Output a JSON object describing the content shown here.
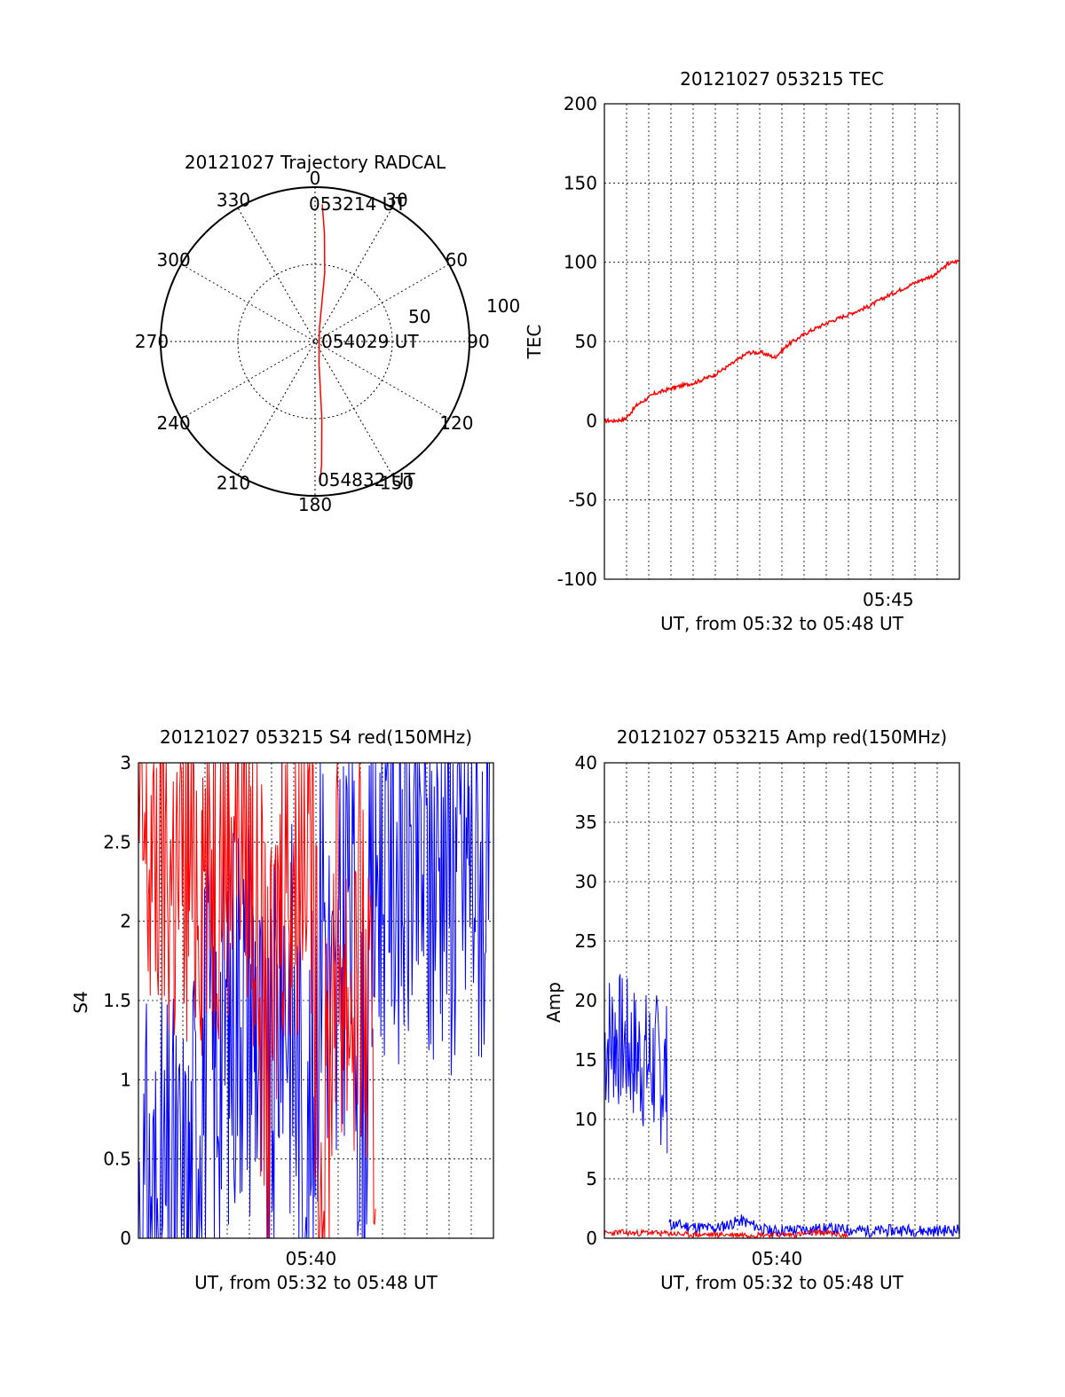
{
  "chart_data": [
    {
      "id": "trajectory",
      "type": "scatter",
      "title": "20121027 Trajectory RADCAL",
      "azimuth_labels": [
        "0",
        "30",
        "60",
        "90",
        "120",
        "150",
        "180",
        "210",
        "240",
        "270",
        "300",
        "330"
      ],
      "radial_labels": [
        "50",
        "100"
      ],
      "rmax": 100,
      "grid": true,
      "annotations": [
        "053214 UT",
        "054029 UT",
        "054832 UT"
      ],
      "series": [
        {
          "color": "#ff0000",
          "points": [
            {
              "az": 3,
              "r": 89
            },
            {
              "az": 5,
              "r": 70
            },
            {
              "az": 8,
              "r": 45
            },
            {
              "az": 20,
              "r": 8
            },
            {
              "az": 170,
              "r": 15
            },
            {
              "az": 175,
              "r": 50
            },
            {
              "az": 177,
              "r": 80
            },
            {
              "az": 178,
              "r": 93
            }
          ]
        }
      ]
    },
    {
      "id": "tec",
      "type": "line",
      "title": "20121027 053215 TEC",
      "xlabel": "UT, from 05:32 to 05:48 UT",
      "ylabel": "TEC",
      "xlim": [
        5.5375,
        5.8033
      ],
      "ylim": [
        -100,
        200
      ],
      "yticks": [
        -100,
        -50,
        0,
        50,
        100,
        150,
        200
      ],
      "xtick_labels": [
        {
          "x": 5.75,
          "label": "05:45"
        }
      ],
      "grid": true,
      "series": [
        {
          "color": "#ff0000",
          "x": [
            5.5375,
            5.545,
            5.553,
            5.562,
            5.575,
            5.59,
            5.605,
            5.62,
            5.635,
            5.645,
            5.655,
            5.665,
            5.675,
            5.69,
            5.705,
            5.72,
            5.735,
            5.75,
            5.765,
            5.775,
            5.785,
            5.795,
            5.8033
          ],
          "y": [
            0,
            0,
            1,
            10,
            17,
            21,
            24,
            29,
            37,
            43,
            43,
            40,
            48,
            56,
            62,
            67,
            72,
            79,
            85,
            89,
            92,
            99,
            101
          ]
        }
      ]
    },
    {
      "id": "s4",
      "type": "line",
      "title": "20121027 053215 S4 red(150MHz)",
      "xlabel": "UT, from 05:32 to 05:48 UT",
      "ylabel": "S4",
      "xlim": [
        5.5375,
        5.8033
      ],
      "ylim": [
        0,
        3
      ],
      "yticks": [
        0,
        0.5,
        1,
        1.5,
        2,
        2.5,
        3
      ],
      "ytick_labels": [
        "0",
        "0.5",
        "1",
        "1.5",
        "2",
        "2.5",
        "3"
      ],
      "xtick_labels": [
        {
          "x": 5.6667,
          "label": "05:40"
        }
      ],
      "grid": true,
      "series": [
        {
          "color": "#ff0000",
          "x": [
            5.5375,
            5.545,
            5.555,
            5.565,
            5.575,
            5.585,
            5.595,
            5.605,
            5.615,
            5.625,
            5.635,
            5.645,
            5.655,
            5.665,
            5.675,
            5.685,
            5.695,
            5.705,
            5.715,
            5.725,
            5.735,
            5.745,
            5.755,
            5.765,
            5.775,
            5.785,
            5.795,
            5.8033
          ],
          "y": [
            2.6,
            2.3,
            2.5,
            2.2,
            2.4,
            2.4,
            2.5,
            2.7,
            2.9,
            2.2,
            0.9,
            2.5,
            2.4,
            3.0,
            0.1,
            2.0,
            1.5,
            1.8,
            0.4,
            null,
            null,
            null,
            null,
            null,
            null,
            null,
            null,
            null
          ]
        },
        {
          "color": "#0000ff",
          "x": [
            5.5375,
            5.545,
            5.555,
            5.565,
            5.575,
            5.585,
            5.595,
            5.605,
            5.615,
            5.625,
            5.635,
            5.645,
            5.655,
            5.665,
            5.675,
            5.685,
            5.695,
            5.705,
            5.715,
            5.725,
            5.735,
            5.745,
            5.755,
            5.765,
            5.775,
            5.785,
            5.795,
            5.8033
          ],
          "y": [
            0.14,
            0.14,
            0.15,
            0.17,
            0.16,
            1.1,
            1.2,
            1.4,
            1.6,
            1.5,
            0.4,
            1.9,
            1.2,
            0.2,
            2.3,
            1.1,
            2.5,
            0.7,
            2.4,
            2.6,
            2.4,
            2.5,
            2.2,
            2.6,
            2.3,
            2.5,
            2.4,
            2.3
          ]
        }
      ]
    },
    {
      "id": "amp",
      "type": "line",
      "title": "20121027 053215 Amp red(150MHz)",
      "xlabel": "UT, from 05:32 to 05:48 UT",
      "ylabel": "Amp",
      "xlim": [
        5.5375,
        5.8033
      ],
      "ylim": [
        0,
        40
      ],
      "yticks": [
        0,
        5,
        10,
        15,
        20,
        25,
        30,
        35,
        40
      ],
      "xtick_labels": [
        {
          "x": 5.6667,
          "label": "05:40"
        }
      ],
      "grid": true,
      "series": [
        {
          "color": "#0000ff",
          "x": [
            5.5375,
            5.545,
            5.555,
            5.565,
            5.575,
            5.585,
            5.586,
            5.6,
            5.62,
            5.64,
            5.66,
            5.68,
            5.7,
            5.72,
            5.74,
            5.76,
            5.78,
            5.8033
          ],
          "y": [
            17,
            18,
            16,
            15,
            14,
            13,
            1.2,
            1.0,
            0.8,
            1.5,
            0.6,
            0.7,
            0.8,
            0.7,
            0.6,
            0.7,
            0.6,
            0.7
          ],
          "band": [
            [
              10,
              23
            ],
            [
              11,
              23
            ],
            [
              10,
              22
            ],
            [
              9,
              21
            ],
            [
              8,
              21
            ],
            [
              7,
              20
            ]
          ]
        },
        {
          "color": "#ff0000",
          "x": [
            5.5375,
            5.55,
            5.56,
            5.57,
            5.58,
            5.586,
            5.6,
            5.64,
            5.68,
            5.7,
            5.72
          ],
          "y": [
            0.4,
            0.5,
            0.4,
            0.5,
            0.4,
            0.4,
            0.3,
            0.3,
            0.3,
            0.5,
            0.2
          ]
        }
      ]
    }
  ]
}
